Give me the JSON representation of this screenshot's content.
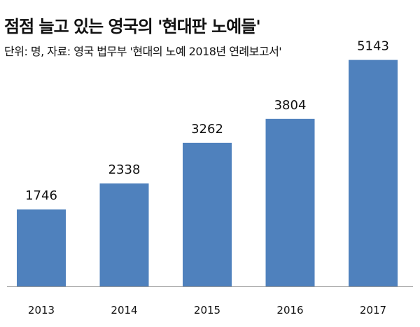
{
  "header": {
    "title": "점점 늘고 있는 영국의 '현대판 노예들'",
    "subtitle": "단위: 명, 자료: 영국 법무부 '현대의 노예 2018년 연례보고서'"
  },
  "colors": {
    "bar": "#4f81bd",
    "axis": "#999999"
  },
  "chart_data": {
    "type": "bar",
    "title": "점점 늘고 있는 영국의 '현대판 노예들'",
    "subtitle": "단위: 명, 자료: 영국 법무부 '현대의 노예 2018년 연례보고서'",
    "categories": [
      "2013",
      "2014",
      "2015",
      "2016",
      "2017"
    ],
    "values": [
      1746,
      2338,
      3262,
      3804,
      5143
    ],
    "xlabel": "",
    "ylabel": "",
    "ylim": [
      0,
      6000
    ],
    "grid": false,
    "legend": "none",
    "data_labels": true
  }
}
